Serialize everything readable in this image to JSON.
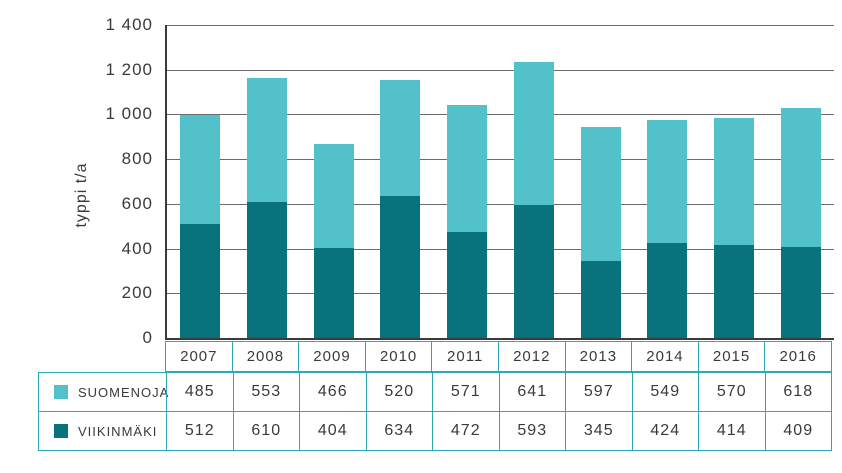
{
  "chart_data": {
    "type": "bar",
    "stacked": true,
    "ylabel": "typpi t/a",
    "ylim": [
      0,
      1400
    ],
    "ytick_step": 200,
    "ytick_labels": [
      "0",
      "200",
      "400",
      "600",
      "800",
      "1 000",
      "1 200",
      "1 400"
    ],
    "categories": [
      "2007",
      "2008",
      "2009",
      "2010",
      "2011",
      "2012",
      "2013",
      "2014",
      "2015",
      "2016"
    ],
    "series": [
      {
        "name": "SUOMENOJA",
        "color": "#52c1c9",
        "values": [
          485,
          553,
          466,
          520,
          571,
          641,
          597,
          549,
          570,
          618
        ]
      },
      {
        "name": "VIIKINMÄKI",
        "color": "#08737d",
        "values": [
          512,
          610,
          404,
          634,
          472,
          593,
          345,
          424,
          414,
          409
        ]
      }
    ],
    "grid": true,
    "legend_position": "table-below"
  },
  "colors": {
    "suomenoja": "#52c1c9",
    "viikinmaki": "#08737d",
    "table_border": "#2ca9b6",
    "axis": "#3a3a3a",
    "gridline": "#6b6b6b",
    "text": "#3a3a3a",
    "background": "#ffffff"
  }
}
